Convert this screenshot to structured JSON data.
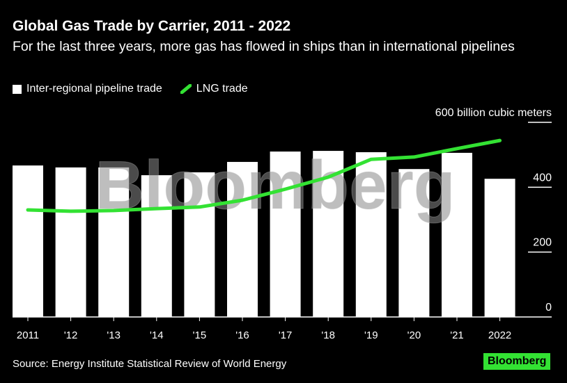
{
  "chart_data": {
    "type": "bar",
    "title": "Global Gas Trade by Carrier, 2011 - 2022",
    "subtitle": "For the last three years, more gas has flowed in ships than in international pipelines",
    "categories": [
      "2011",
      "'12",
      "'13",
      "'14",
      "'15",
      "'16",
      "'17",
      "'18",
      "'19",
      "'20",
      "'21",
      "2022"
    ],
    "series": [
      {
        "name": "Inter-regional pipeline trade",
        "kind": "bar",
        "color": "#ffffff",
        "values": [
          467,
          461,
          461,
          437,
          446,
          478,
          510,
          512,
          508,
          456,
          506,
          426
        ]
      },
      {
        "name": "LNG trade",
        "kind": "line",
        "color": "#33e233",
        "values": [
          330,
          326,
          328,
          334,
          339,
          360,
          394,
          431,
          486,
          493,
          519,
          544
        ]
      }
    ],
    "ylabel": "billion cubic meters",
    "ylim": [
      0,
      600
    ],
    "yticks": [
      {
        "value": 0,
        "label": "0"
      },
      {
        "value": 200,
        "label": "200"
      },
      {
        "value": 400,
        "label": "400"
      },
      {
        "value": 600,
        "label": "600 billion cubic meters"
      }
    ],
    "legend": "top-left",
    "grid": false
  },
  "source": "Source: Energy Institute Statistical Review of World Energy",
  "logo": "Bloomberg",
  "watermark": "Bloomberg"
}
